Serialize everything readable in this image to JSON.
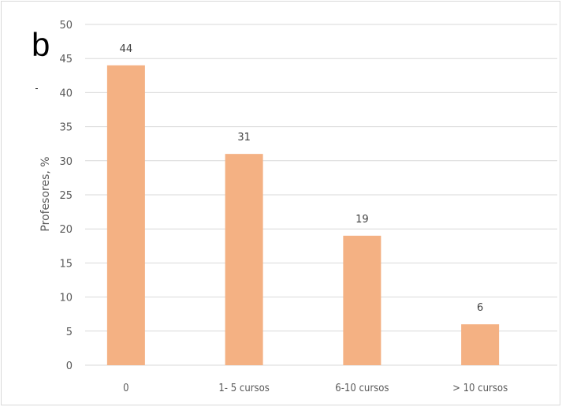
{
  "panel_label": "b",
  "chart_data": {
    "type": "bar",
    "categories": [
      "0",
      "1- 5 cursos",
      "6-10 cursos",
      "> 10 cursos"
    ],
    "values": [
      44,
      31,
      19,
      6
    ],
    "data_labels": [
      "44",
      "31",
      "19",
      "6"
    ],
    "title": "",
    "xlabel": "",
    "ylabel": "Profesores, %",
    "ylim": [
      0,
      50
    ],
    "yticks": [
      0,
      5,
      10,
      15,
      20,
      25,
      30,
      35,
      40,
      45,
      50
    ],
    "grid": true,
    "legend": "none",
    "bar_color": "#f4b183",
    "grid_color": "#d9d9d9"
  }
}
